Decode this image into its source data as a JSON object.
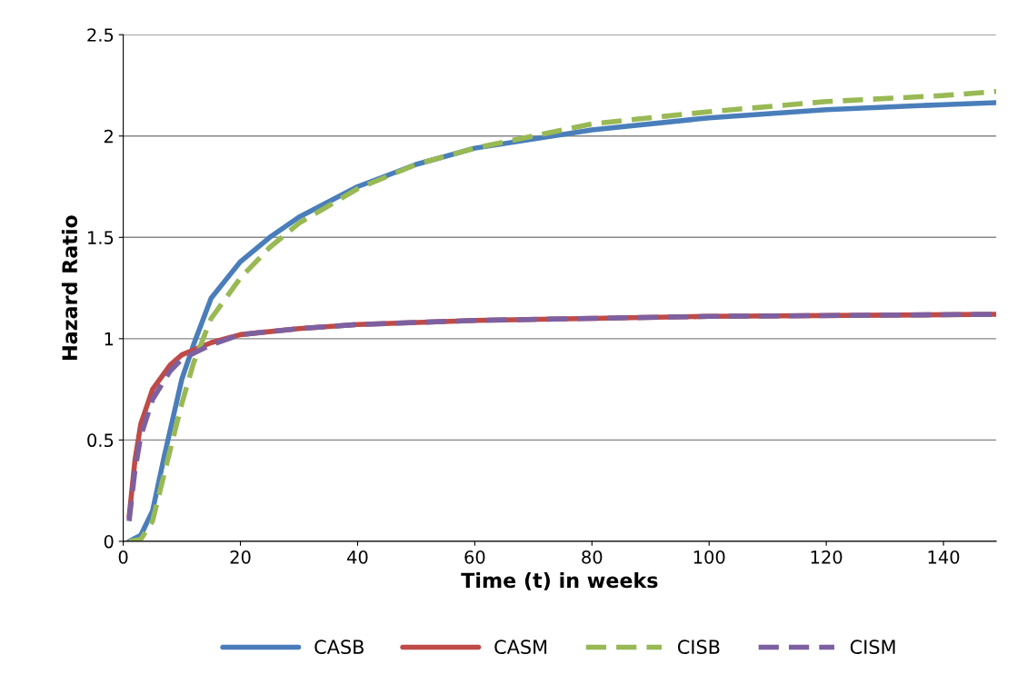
{
  "chart_data": {
    "type": "line",
    "xlabel": "Time (t) in weeks",
    "ylabel": "Hazard Ratio",
    "xlim": [
      0,
      149
    ],
    "xticks": [
      0,
      20,
      40,
      60,
      80,
      100,
      120,
      140
    ],
    "ylim": [
      0,
      2.5
    ],
    "yticks": [
      0,
      0.5,
      1,
      1.5,
      2,
      2.5
    ],
    "grid": "y",
    "legend": "bottom",
    "marker": "none",
    "series": [
      {
        "name": "CASB",
        "color": "#4a7ebb",
        "line_style": "solid",
        "x": [
          1,
          3,
          5,
          7,
          10,
          12,
          15,
          20,
          25,
          30,
          40,
          50,
          60,
          80,
          100,
          120,
          140,
          149
        ],
        "values": [
          0,
          0.03,
          0.15,
          0.42,
          0.8,
          0.97,
          1.2,
          1.38,
          1.5,
          1.6,
          1.75,
          1.86,
          1.94,
          2.03,
          2.09,
          2.13,
          2.155,
          2.165
        ]
      },
      {
        "name": "CASM",
        "color": "#be4b48",
        "line_style": "solid",
        "x": [
          1,
          2,
          3,
          5,
          8,
          10,
          15,
          20,
          30,
          40,
          60,
          80,
          100,
          149
        ],
        "values": [
          0.12,
          0.4,
          0.58,
          0.75,
          0.87,
          0.92,
          0.98,
          1.02,
          1.05,
          1.07,
          1.09,
          1.1,
          1.11,
          1.12
        ]
      },
      {
        "name": "CISB",
        "color": "#98b954",
        "line_style": "dashed",
        "x": [
          1,
          3,
          5,
          8,
          10,
          12,
          15,
          20,
          25,
          30,
          40,
          50,
          60,
          80,
          100,
          120,
          140,
          149
        ],
        "values": [
          0,
          0.01,
          0.1,
          0.45,
          0.68,
          0.88,
          1.1,
          1.3,
          1.45,
          1.57,
          1.74,
          1.86,
          1.94,
          2.06,
          2.12,
          2.17,
          2.2,
          2.22
        ]
      },
      {
        "name": "CISM",
        "color": "#7d60a0",
        "line_style": "dashed",
        "x": [
          1,
          2,
          3,
          5,
          8,
          10,
          15,
          20,
          30,
          40,
          60,
          80,
          100,
          149
        ],
        "values": [
          0.1,
          0.35,
          0.52,
          0.7,
          0.84,
          0.9,
          0.97,
          1.02,
          1.05,
          1.07,
          1.09,
          1.1,
          1.11,
          1.12
        ]
      }
    ]
  }
}
